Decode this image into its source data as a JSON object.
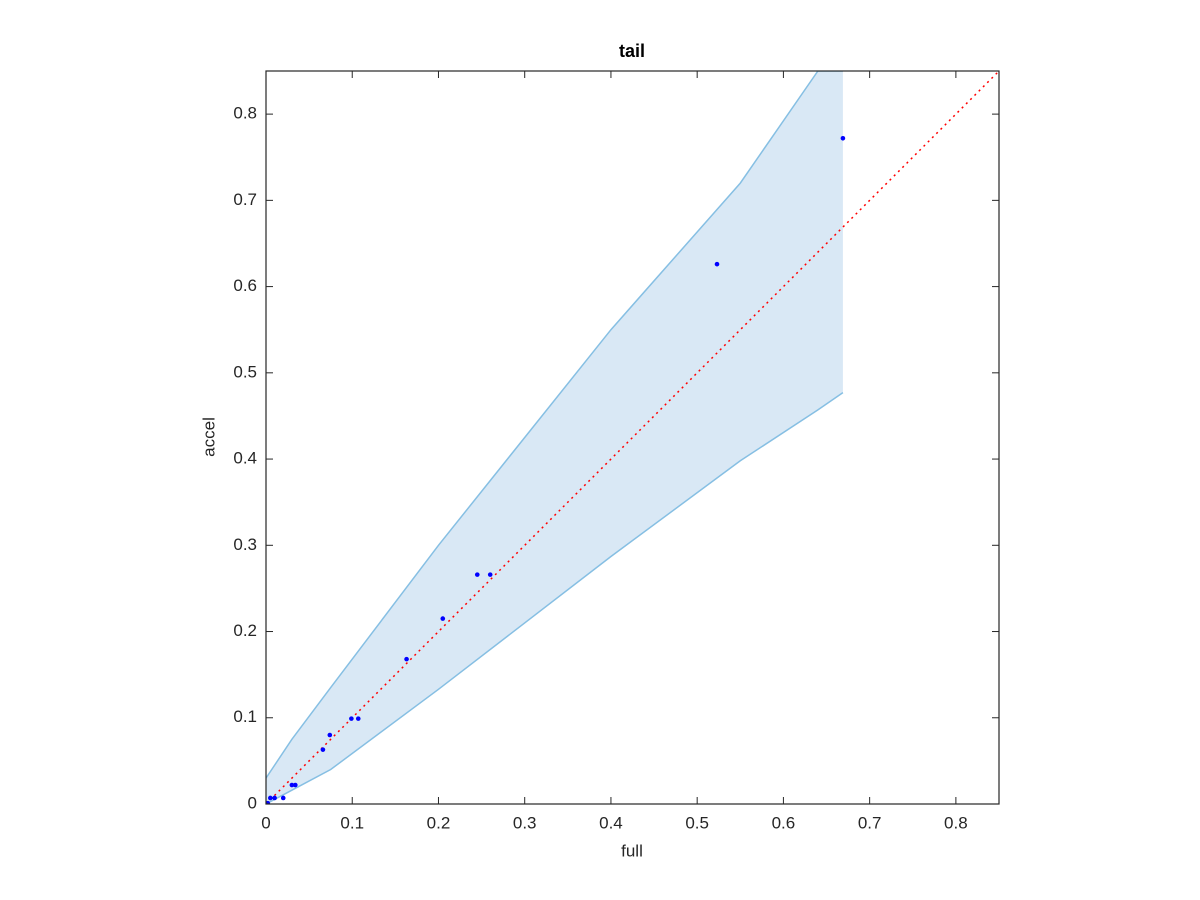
{
  "chart_data": {
    "type": "scatter",
    "title": "tail",
    "xlabel": "full",
    "ylabel": "accel",
    "xlim": [
      0,
      0.85
    ],
    "ylim": [
      0,
      0.85
    ],
    "xticks": [
      0,
      0.1,
      0.2,
      0.3,
      0.4,
      0.5,
      0.6,
      0.7,
      0.8
    ],
    "yticks": [
      0,
      0.1,
      0.2,
      0.3,
      0.4,
      0.5,
      0.6,
      0.7,
      0.8
    ],
    "points": {
      "color": "#0000ff",
      "x": [
        0.669,
        0.523,
        0.245,
        0.26,
        0.205,
        0.163,
        0.107,
        0.099,
        0.074,
        0.066,
        0.03,
        0.034,
        0.02,
        0.01,
        0.005,
        0,
        0.002
      ],
      "y": [
        0.772,
        0.626,
        0.266,
        0.266,
        0.215,
        0.168,
        0.099,
        0.099,
        0.08,
        0.063,
        0.022,
        0.022,
        0.007,
        0.007,
        0.007,
        0,
        0.001
      ]
    },
    "band": {
      "fill": "#d9e8f5",
      "edge": "#86bfe3",
      "x": [
        0,
        0.03,
        0.075,
        0.2,
        0.4,
        0.55,
        0.64,
        0.669
      ],
      "upper": [
        0.03,
        0.075,
        0.135,
        0.3,
        0.55,
        0.72,
        0.85,
        0.85
      ],
      "lower": [
        0,
        0.016,
        0.04,
        0.133,
        0.287,
        0.398,
        0.457,
        0.477
      ]
    },
    "reference_line": {
      "color": "#ff0000",
      "x": [
        0,
        0.85
      ],
      "y": [
        0,
        0.85
      ]
    }
  }
}
